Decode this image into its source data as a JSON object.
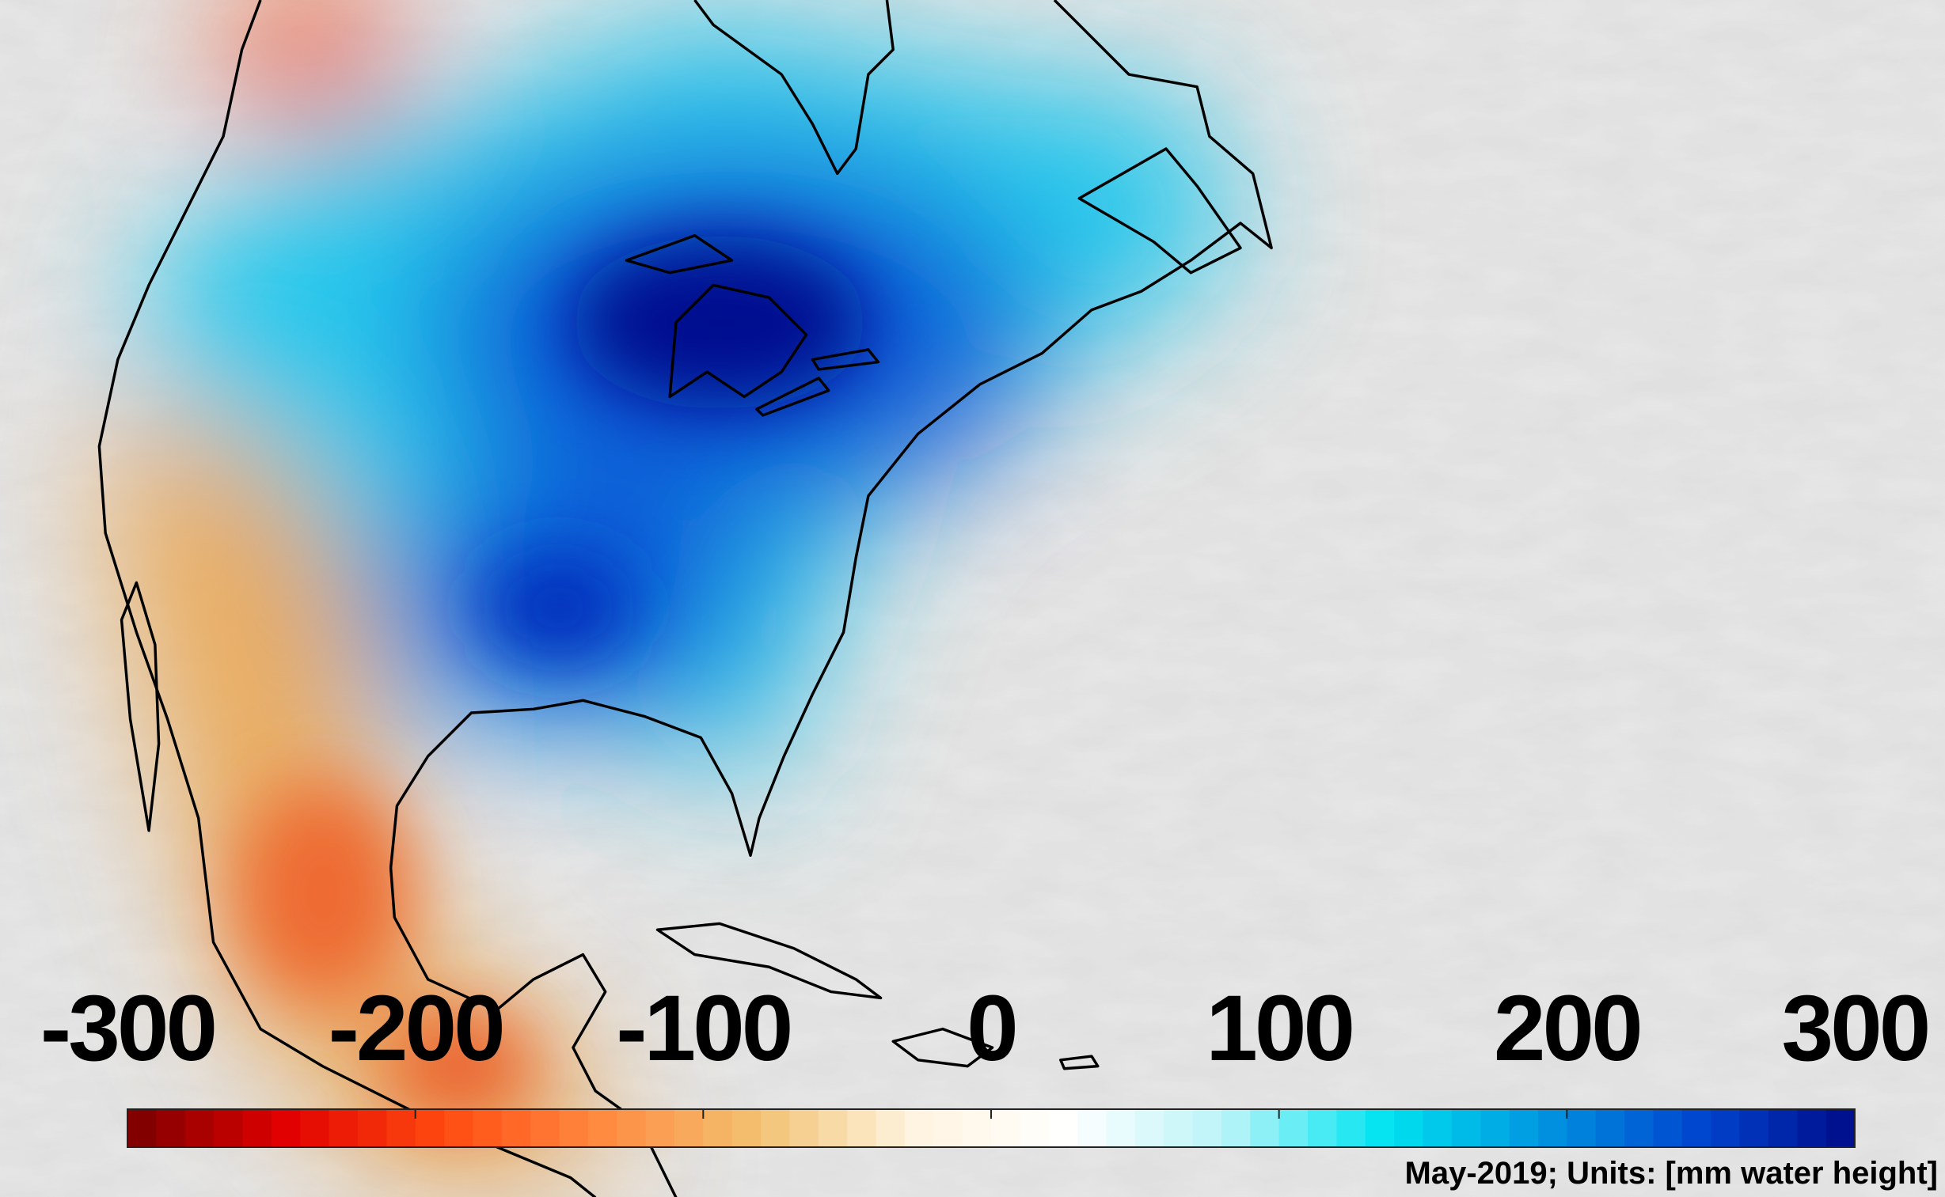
{
  "colorbar": {
    "lim": [
      -300,
      300
    ],
    "ticks": [
      -300,
      -200,
      -100,
      0,
      100,
      200,
      300
    ],
    "colors": [
      "#7a0000",
      "#e00000",
      "#ff4a10",
      "#ff8a40",
      "#f2c070",
      "#fff4e0",
      "#ffffff",
      "#b8f4f8",
      "#00e4f0",
      "#0096e0",
      "#0046d0",
      "#000c8a"
    ]
  },
  "caption": "May-2019; Units: [mm water height]"
}
